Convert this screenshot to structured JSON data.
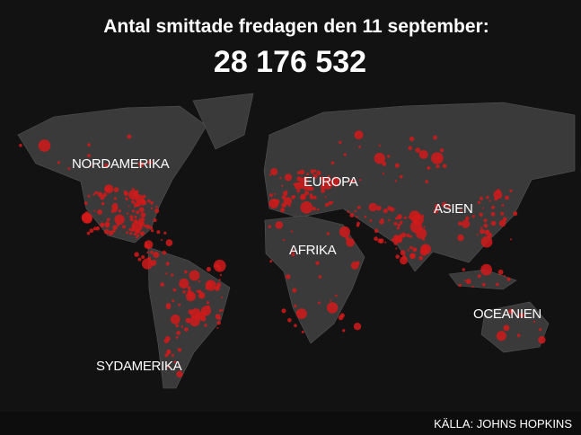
{
  "header": {
    "title": "Antal smittade fredagen den 11 september:",
    "total": "28 176 532"
  },
  "map": {
    "labels": [
      "NORDAMERIKA",
      "EUROPA",
      "ASIEN",
      "AFRIKA",
      "OCEANIEN",
      "SYDAMERIKA"
    ]
  },
  "footer": {
    "source": "KÄLLA: JOHNS HOPKINS"
  }
}
